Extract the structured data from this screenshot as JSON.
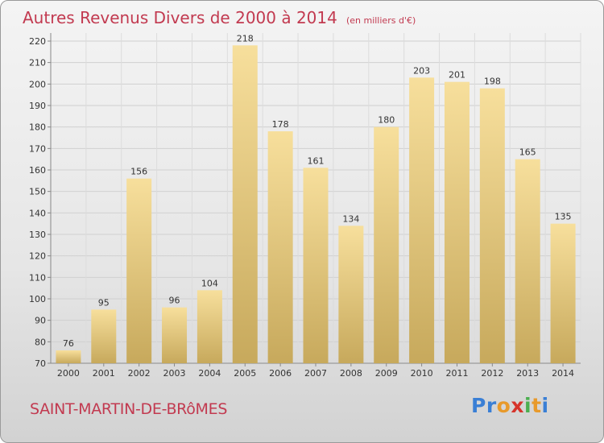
{
  "title": "Autres Revenus Divers de 2000 à 2014",
  "unit": "(en milliers d'€)",
  "commune": "SAINT-MARTIN-DE-BRôMES",
  "logo": {
    "letters": [
      "P",
      "r",
      "o",
      "x",
      "i",
      "t",
      "i"
    ],
    "colors": [
      "#3a7fd5",
      "#3a7fd5",
      "#e89a2b",
      "#d6342b",
      "#4caf50",
      "#e89a2b",
      "#3a7fd5"
    ]
  },
  "chart_data": {
    "type": "bar",
    "categories": [
      "2000",
      "2001",
      "2002",
      "2003",
      "2004",
      "2005",
      "2006",
      "2007",
      "2008",
      "2009",
      "2010",
      "2011",
      "2012",
      "2013",
      "2014"
    ],
    "values": [
      76,
      95,
      156,
      96,
      104,
      218,
      178,
      161,
      134,
      180,
      203,
      201,
      198,
      165,
      135
    ],
    "ylim": [
      70,
      220
    ],
    "yticks": [
      70,
      80,
      90,
      100,
      110,
      120,
      130,
      140,
      150,
      160,
      170,
      180,
      190,
      200,
      210,
      220
    ],
    "grid": true,
    "bar_color": "#e2c785"
  }
}
